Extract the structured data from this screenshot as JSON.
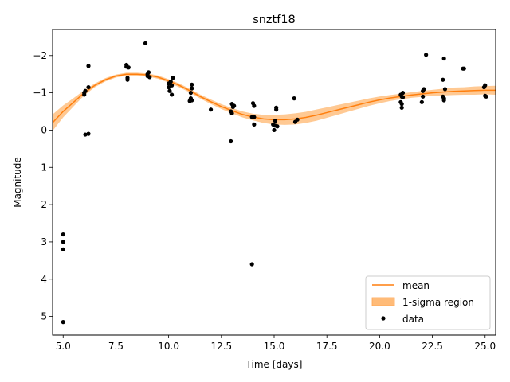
{
  "chart_data": {
    "type": "scatter",
    "title": "snztf18",
    "xlabel": "Time [days]",
    "ylabel": "Magnitude",
    "xlim": [
      4.5,
      25.5
    ],
    "ylim": [
      5.5,
      -2.7
    ],
    "y_inverted": true,
    "xticks": [
      5.0,
      7.5,
      10.0,
      12.5,
      15.0,
      17.5,
      20.0,
      22.5,
      25.0
    ],
    "xtick_labels": [
      "5.0",
      "7.5",
      "10.0",
      "12.5",
      "15.0",
      "17.5",
      "20.0",
      "22.5",
      "25.0"
    ],
    "yticks": [
      -2,
      -1,
      0,
      1,
      2,
      3,
      4,
      5
    ],
    "ytick_labels": [
      "−2",
      "−1",
      "0",
      "1",
      "2",
      "3",
      "4",
      "5"
    ],
    "grid": false,
    "legend_position": "lower-right",
    "legend": [
      {
        "label": "mean",
        "kind": "line"
      },
      {
        "label": "1-sigma region",
        "kind": "band"
      },
      {
        "label": "data",
        "kind": "point"
      }
    ],
    "colors": {
      "mean": "#ff7f0e",
      "band": "#ffbb78",
      "data": "#000000"
    },
    "mean_curve": {
      "x": [
        4.5,
        5.0,
        5.5,
        6.0,
        6.5,
        7.0,
        7.5,
        8.0,
        8.5,
        9.0,
        9.5,
        10.0,
        10.5,
        11.0,
        11.5,
        12.0,
        12.5,
        13.0,
        13.5,
        14.0,
        14.5,
        15.0,
        15.5,
        16.0,
        16.5,
        17.0,
        17.5,
        18.0,
        18.5,
        19.0,
        19.5,
        20.0,
        20.5,
        21.0,
        21.5,
        22.0,
        22.5,
        23.0,
        23.5,
        24.0,
        24.5,
        25.0,
        25.5
      ],
      "y": [
        -0.2,
        -0.5,
        -0.75,
        -1.0,
        -1.2,
        -1.35,
        -1.45,
        -1.5,
        -1.5,
        -1.48,
        -1.42,
        -1.32,
        -1.2,
        -1.06,
        -0.9,
        -0.76,
        -0.63,
        -0.52,
        -0.42,
        -0.35,
        -0.3,
        -0.28,
        -0.28,
        -0.3,
        -0.34,
        -0.4,
        -0.47,
        -0.54,
        -0.61,
        -0.68,
        -0.75,
        -0.81,
        -0.86,
        -0.9,
        -0.94,
        -0.97,
        -1.0,
        -1.02,
        -1.04,
        -1.05,
        -1.06,
        -1.07,
        -1.07
      ],
      "sigma": [
        0.22,
        0.16,
        0.11,
        0.07,
        0.05,
        0.045,
        0.04,
        0.04,
        0.04,
        0.04,
        0.045,
        0.045,
        0.05,
        0.05,
        0.055,
        0.06,
        0.065,
        0.07,
        0.08,
        0.09,
        0.11,
        0.13,
        0.14,
        0.15,
        0.15,
        0.15,
        0.14,
        0.13,
        0.12,
        0.11,
        0.1,
        0.09,
        0.08,
        0.075,
        0.075,
        0.08,
        0.08,
        0.09,
        0.1,
        0.1,
        0.11,
        0.11,
        0.12
      ]
    },
    "series": [
      {
        "name": "data",
        "points": [
          [
            5.0,
            2.8
          ],
          [
            5.0,
            3.0
          ],
          [
            5.0,
            3.2
          ],
          [
            5.0,
            5.15
          ],
          [
            6.0,
            -1.0
          ],
          [
            6.0,
            -0.95
          ],
          [
            6.05,
            -1.05
          ],
          [
            6.05,
            0.12
          ],
          [
            6.2,
            0.1
          ],
          [
            6.2,
            -1.15
          ],
          [
            6.2,
            -1.72
          ],
          [
            8.0,
            -1.75
          ],
          [
            8.0,
            -1.7
          ],
          [
            8.05,
            -1.35
          ],
          [
            8.05,
            -1.4
          ],
          [
            8.1,
            -1.68
          ],
          [
            8.9,
            -2.33
          ],
          [
            9.0,
            -1.5
          ],
          [
            9.0,
            -1.45
          ],
          [
            9.05,
            -1.55
          ],
          [
            9.1,
            -1.42
          ],
          [
            10.0,
            -1.25
          ],
          [
            10.0,
            -1.15
          ],
          [
            10.05,
            -1.05
          ],
          [
            10.1,
            -1.3
          ],
          [
            10.15,
            -1.2
          ],
          [
            10.15,
            -0.95
          ],
          [
            10.2,
            -1.4
          ],
          [
            11.0,
            -0.78
          ],
          [
            11.05,
            -0.85
          ],
          [
            11.05,
            -1.0
          ],
          [
            11.1,
            -1.12
          ],
          [
            11.1,
            -1.22
          ],
          [
            11.1,
            -0.8
          ],
          [
            12.0,
            -0.55
          ],
          [
            12.95,
            -0.5
          ],
          [
            13.0,
            -0.45
          ],
          [
            13.0,
            -0.7
          ],
          [
            13.05,
            -0.62
          ],
          [
            13.1,
            -0.65
          ],
          [
            12.95,
            0.3
          ],
          [
            13.95,
            3.6
          ],
          [
            13.95,
            -0.35
          ],
          [
            14.0,
            -0.72
          ],
          [
            14.05,
            -0.65
          ],
          [
            14.05,
            -0.35
          ],
          [
            14.05,
            -0.15
          ],
          [
            14.95,
            -0.15
          ],
          [
            15.0,
            0.0
          ],
          [
            15.05,
            -0.12
          ],
          [
            15.05,
            -0.25
          ],
          [
            15.1,
            -0.6
          ],
          [
            15.1,
            -0.55
          ],
          [
            15.15,
            -0.1
          ],
          [
            15.95,
            -0.85
          ],
          [
            16.0,
            -0.22
          ],
          [
            16.1,
            -0.28
          ],
          [
            21.0,
            -0.95
          ],
          [
            21.0,
            -0.75
          ],
          [
            21.05,
            -0.6
          ],
          [
            21.05,
            -0.7
          ],
          [
            21.05,
            -0.9
          ],
          [
            21.1,
            -1.0
          ],
          [
            21.1,
            -0.88
          ],
          [
            22.0,
            -0.75
          ],
          [
            22.05,
            -1.05
          ],
          [
            22.05,
            -0.9
          ],
          [
            22.1,
            -1.1
          ],
          [
            22.2,
            -2.02
          ],
          [
            23.0,
            -0.9
          ],
          [
            23.0,
            -1.35
          ],
          [
            23.05,
            -0.8
          ],
          [
            23.05,
            -0.85
          ],
          [
            23.1,
            -1.1
          ],
          [
            23.05,
            -1.92
          ],
          [
            23.95,
            -1.65
          ],
          [
            24.0,
            -1.65
          ],
          [
            24.95,
            -1.15
          ],
          [
            25.0,
            -1.2
          ],
          [
            25.0,
            -0.92
          ],
          [
            25.05,
            -0.9
          ]
        ]
      }
    ]
  }
}
